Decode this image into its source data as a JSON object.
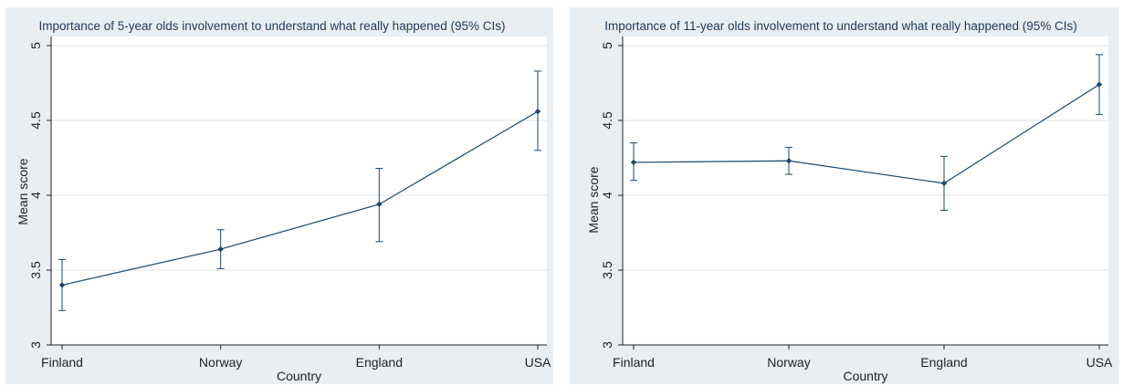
{
  "chart_data": [
    {
      "type": "line",
      "title": "Importance of 5-year olds involvement to understand what really happened (95% CIs)",
      "xlabel": "Country",
      "ylabel": "Mean score",
      "categories": [
        "Finland",
        "Norway",
        "England",
        "USA"
      ],
      "y_ticks": [
        3,
        3.5,
        4,
        4.5,
        5
      ],
      "y_tick_labels": [
        "3",
        "3.5",
        "4",
        "4.5",
        "5"
      ],
      "ylim": [
        3,
        5
      ],
      "grid": true,
      "series": [
        {
          "values": [
            3.4,
            3.64,
            3.94,
            4.56
          ],
          "ci_low": [
            3.23,
            3.51,
            3.69,
            4.3
          ],
          "ci_high": [
            3.57,
            3.77,
            4.18,
            4.83
          ]
        }
      ]
    },
    {
      "type": "line",
      "title": "Importance of 11-year olds involvement to understand what really happened (95% CIs)",
      "xlabel": "Country",
      "ylabel": "Mean score",
      "categories": [
        "Finland",
        "Norway",
        "England",
        "USA"
      ],
      "y_ticks": [
        3,
        3.5,
        4,
        4.5,
        5
      ],
      "y_tick_labels": [
        "3",
        "3.5",
        "4",
        "4.5",
        "5"
      ],
      "ylim": [
        3,
        5
      ],
      "grid": true,
      "series": [
        {
          "values": [
            4.22,
            4.23,
            4.08,
            4.74
          ],
          "ci_low": [
            4.1,
            4.14,
            3.9,
            4.54
          ],
          "ci_high": [
            4.35,
            4.32,
            4.26,
            4.94
          ]
        }
      ]
    }
  ]
}
